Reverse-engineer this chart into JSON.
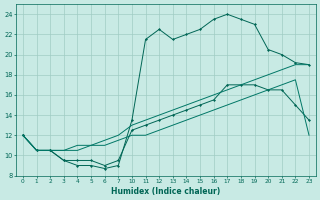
{
  "bg_color": "#c8eae4",
  "grid_color": "#a0ccc4",
  "line_color_dark": "#006655",
  "line_color_med": "#007766",
  "xlabel": "Humidex (Indice chaleur)",
  "x_labels": [
    "0",
    "1",
    "2",
    "3",
    "4",
    "5",
    "6",
    "7",
    "10",
    "11",
    "12",
    "13",
    "14",
    "15",
    "16",
    "17",
    "18",
    "19",
    "20",
    "21",
    "22",
    "23"
  ],
  "line1_y": [
    12,
    10.5,
    10.5,
    9.5,
    9,
    9,
    8.7,
    9,
    13.5,
    21.5,
    22.5,
    21.5,
    22,
    22.5,
    23.5,
    24,
    23.5,
    23,
    20.5,
    20,
    19.2,
    19
  ],
  "line2_y": [
    12,
    10.5,
    10.5,
    9.5,
    9.5,
    9.5,
    9,
    9.5,
    12.5,
    13,
    13.5,
    14,
    14.5,
    15,
    15.5,
    17,
    17,
    17,
    16.5,
    16.5,
    15,
    13.5
  ],
  "line3_y": [
    12,
    10.5,
    10.5,
    10.5,
    11,
    11,
    11.5,
    12,
    13,
    13.5,
    14,
    14.5,
    15,
    15.5,
    16,
    16.5,
    17,
    17.5,
    18,
    18.5,
    19,
    19
  ],
  "line4_y": [
    12,
    10.5,
    10.5,
    10.5,
    10.5,
    11,
    11,
    11.5,
    12,
    12,
    12.5,
    13,
    13.5,
    14,
    14.5,
    15,
    15.5,
    16,
    16.5,
    17,
    17.5,
    12
  ],
  "yticks": [
    8,
    10,
    12,
    14,
    16,
    18,
    20,
    22,
    24
  ],
  "ylim": [
    8,
    25
  ]
}
